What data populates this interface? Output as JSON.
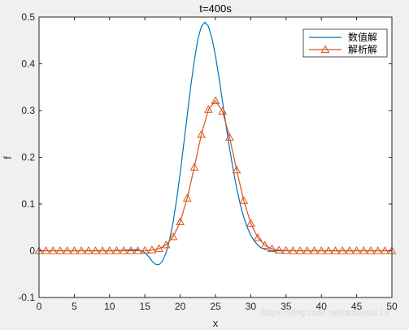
{
  "chart_data": {
    "type": "line",
    "title": "t=400s",
    "xlabel": "x",
    "ylabel": "f",
    "xlim": [
      0,
      50
    ],
    "ylim": [
      -0.1,
      0.5
    ],
    "x_ticks": [
      0,
      5,
      10,
      15,
      20,
      25,
      30,
      35,
      40,
      45,
      50
    ],
    "y_ticks": [
      -0.1,
      0,
      0.1,
      0.2,
      0.3,
      0.4,
      0.5
    ],
    "x_tick_labels": [
      "0",
      "5",
      "10",
      "15",
      "20",
      "25",
      "30",
      "35",
      "40",
      "45",
      "50"
    ],
    "y_tick_labels": [
      "-0.1",
      "0",
      "0.1",
      "0.2",
      "0.3",
      "0.4",
      "0.5"
    ],
    "grid": false,
    "legend_position": "top-right",
    "series": [
      {
        "name": "数值解",
        "color": "#0072BD",
        "marker": "none",
        "x": [
          0,
          10,
          12,
          13,
          14,
          14.5,
          15,
          15.5,
          16,
          16.5,
          17,
          17.5,
          18,
          18.5,
          19,
          19.5,
          20,
          20.5,
          21,
          21.5,
          22,
          22.5,
          23,
          23.5,
          24,
          24.5,
          25,
          25.5,
          26,
          26.5,
          27,
          27.5,
          28,
          28.5,
          29,
          29.5,
          30,
          30.5,
          31,
          31.5,
          32,
          32.5,
          33,
          34,
          35,
          50
        ],
        "y": [
          0,
          0,
          0.001,
          0.002,
          0.002,
          0.0,
          -0.004,
          -0.012,
          -0.022,
          -0.029,
          -0.03,
          -0.022,
          -0.004,
          0.024,
          0.062,
          0.11,
          0.166,
          0.228,
          0.29,
          0.352,
          0.407,
          0.452,
          0.48,
          0.489,
          0.48,
          0.455,
          0.417,
          0.37,
          0.319,
          0.268,
          0.219,
          0.174,
          0.134,
          0.1,
          0.072,
          0.05,
          0.033,
          0.021,
          0.012,
          0.006,
          0.003,
          0.001,
          0.0,
          0,
          0,
          0
        ]
      },
      {
        "name": "解析解",
        "color": "#D95319",
        "marker": "triangle",
        "x": [
          0,
          1,
          2,
          3,
          4,
          5,
          6,
          7,
          8,
          9,
          10,
          11,
          12,
          13,
          14,
          15,
          16,
          17,
          18,
          19,
          20,
          21,
          22,
          23,
          24,
          25,
          26,
          27,
          28,
          29,
          30,
          31,
          32,
          33,
          34,
          35,
          36,
          37,
          38,
          39,
          40,
          41,
          42,
          43,
          44,
          45,
          46,
          47,
          48,
          49,
          50
        ],
        "y": [
          0,
          0,
          0,
          0,
          0,
          0,
          0,
          0,
          0,
          0,
          0,
          0,
          0,
          0,
          0.0001,
          0.0004,
          0.0015,
          0.0046,
          0.0125,
          0.0297,
          0.0618,
          0.1125,
          0.1788,
          0.2486,
          0.3021,
          0.321,
          0.2984,
          0.2427,
          0.1727,
          0.1075,
          0.0585,
          0.0278,
          0.0116,
          0.0042,
          0.0013,
          0.0004,
          0.0001,
          0,
          0,
          0,
          0,
          0,
          0,
          0,
          0,
          0,
          0,
          0,
          0,
          0,
          0
        ]
      }
    ]
  },
  "watermark": "https://blog.csdn.net/artorias123"
}
